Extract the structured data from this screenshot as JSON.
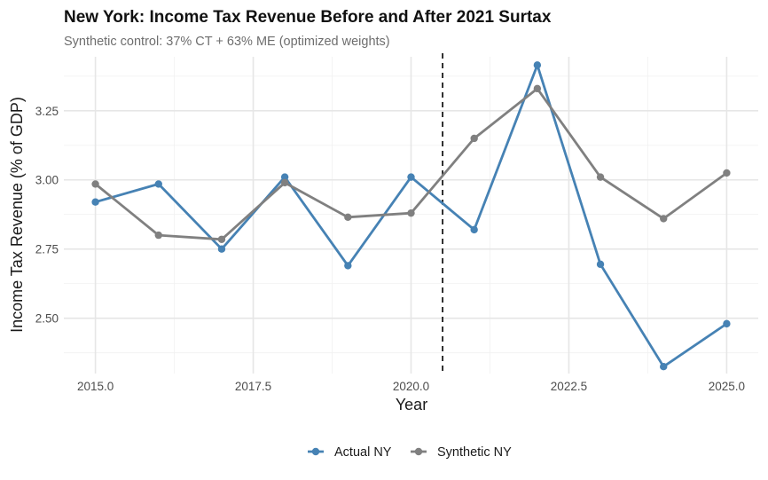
{
  "chart_data": {
    "type": "line",
    "title": "New York: Income Tax Revenue Before and After 2021 Surtax",
    "subtitle": "Synthetic control: 37% CT + 63% ME (optimized weights)",
    "xlabel": "Year",
    "ylabel": "Income Tax Revenue (% of GDP)",
    "xlim": [
      2014.5,
      2025.5
    ],
    "ylim": [
      2.3,
      3.445
    ],
    "x_ticks": [
      2015.0,
      2017.5,
      2020.0,
      2022.5,
      2025.0
    ],
    "x_tick_labels": [
      "2015.0",
      "2017.5",
      "2020.0",
      "2022.5",
      "2025.0"
    ],
    "y_ticks": [
      2.5,
      2.75,
      3.0,
      3.25
    ],
    "y_tick_labels": [
      "2.50",
      "2.75",
      "3.00",
      "3.25"
    ],
    "grid": true,
    "reference_line": {
      "x": 2020.5,
      "style": "dashed",
      "color": "#1a1a1a"
    },
    "legend_position": "bottom",
    "x": [
      2015,
      2016,
      2017,
      2018,
      2019,
      2020,
      2021,
      2022,
      2023,
      2024,
      2025
    ],
    "series": [
      {
        "name": "Actual NY",
        "color": "#4682b4",
        "values": [
          2.92,
          2.985,
          2.75,
          3.01,
          2.69,
          3.01,
          2.82,
          3.415,
          2.695,
          2.325,
          2.48
        ]
      },
      {
        "name": "Synthetic NY",
        "color": "#808080",
        "values": [
          2.985,
          2.8,
          2.785,
          2.99,
          2.865,
          2.88,
          3.15,
          3.33,
          3.01,
          2.86,
          3.025
        ]
      }
    ]
  }
}
